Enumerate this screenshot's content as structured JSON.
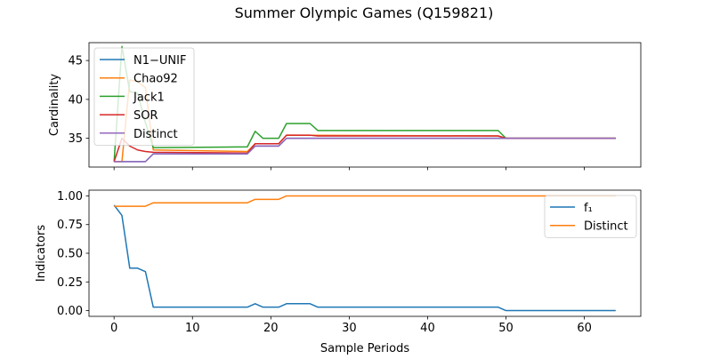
{
  "title": "Summer Olympic Games (Q159821)",
  "chart_data": [
    {
      "type": "line",
      "ylabel": "Cardinality",
      "xlabel": "",
      "xlim": [
        -3.2,
        67.2
      ],
      "ylim": [
        31.3,
        47.3
      ],
      "x_ticks": [
        0,
        10,
        20,
        30,
        40,
        50,
        60
      ],
      "y_ticks": [
        35,
        40,
        45
      ],
      "y_tick_labels": [
        "35",
        "40",
        "45"
      ],
      "show_x_tick_labels": false,
      "legend_position": "top-left",
      "series": [
        {
          "name": "N1−UNIF",
          "color": "#1f77b4",
          "points": [
            [
              0,
              32
            ],
            [
              1,
              32
            ],
            [
              2,
              32
            ],
            [
              3,
              32
            ],
            [
              4,
              32
            ],
            [
              5,
              33
            ],
            [
              17,
              33
            ],
            [
              18,
              34
            ],
            [
              21,
              34
            ],
            [
              22,
              35
            ],
            [
              49,
              35
            ],
            [
              50,
              35
            ],
            [
              64,
              35
            ]
          ]
        },
        {
          "name": "Chao92",
          "color": "#ff7f0e",
          "points": [
            [
              0,
              32
            ],
            [
              1,
              32
            ],
            [
              2,
              42.5
            ],
            [
              3,
              42.3
            ],
            [
              4,
              41.5
            ],
            [
              5,
              33.5
            ],
            [
              17,
              33.3
            ],
            [
              18,
              34.3
            ],
            [
              21,
              34.3
            ],
            [
              22,
              35.4
            ],
            [
              49,
              35.3
            ],
            [
              50,
              35
            ],
            [
              64,
              35
            ]
          ]
        },
        {
          "name": "Jack1",
          "color": "#2ca02c",
          "points": [
            [
              0,
              32
            ],
            [
              1,
              46.8
            ],
            [
              2,
              41
            ],
            [
              3,
              40.8
            ],
            [
              4,
              37
            ],
            [
              5,
              33.8
            ],
            [
              17,
              33.9
            ],
            [
              18,
              35.9
            ],
            [
              19,
              35
            ],
            [
              21,
              35
            ],
            [
              22,
              36.9
            ],
            [
              25,
              36.9
            ],
            [
              26,
              36
            ],
            [
              49,
              36
            ],
            [
              50,
              35
            ],
            [
              64,
              35
            ]
          ]
        },
        {
          "name": "SOR",
          "color": "#d62728",
          "points": [
            [
              0,
              32
            ],
            [
              1,
              35
            ],
            [
              2,
              34
            ],
            [
              3,
              33.5
            ],
            [
              4,
              33.3
            ],
            [
              5,
              33.2
            ],
            [
              17,
              33.1
            ],
            [
              18,
              34.3
            ],
            [
              21,
              34.3
            ],
            [
              22,
              35.4
            ],
            [
              25,
              35.4
            ],
            [
              26,
              35.3
            ],
            [
              49,
              35.3
            ],
            [
              50,
              35
            ],
            [
              64,
              35
            ]
          ]
        },
        {
          "name": "Distinct",
          "color": "#9467bd",
          "points": [
            [
              0,
              32
            ],
            [
              4,
              32
            ],
            [
              5,
              33
            ],
            [
              17,
              33
            ],
            [
              18,
              34
            ],
            [
              21,
              34
            ],
            [
              22,
              35
            ],
            [
              49,
              35
            ],
            [
              50,
              35
            ],
            [
              64,
              35
            ]
          ]
        }
      ]
    },
    {
      "type": "line",
      "ylabel": "Indicators",
      "xlabel": "Sample Periods",
      "xlim": [
        -3.2,
        67.2
      ],
      "ylim": [
        -0.05,
        1.05
      ],
      "x_ticks": [
        0,
        10,
        20,
        30,
        40,
        50,
        60
      ],
      "y_ticks": [
        0,
        0.25,
        0.5,
        0.75,
        1.0
      ],
      "y_tick_labels": [
        "0.00",
        "0.25",
        "0.50",
        "0.75",
        "1.00"
      ],
      "show_x_tick_labels": true,
      "legend_position": "top-right",
      "series": [
        {
          "name": "f₁",
          "color": "#1f77b4",
          "points": [
            [
              0,
              0.92
            ],
            [
              1,
              0.83
            ],
            [
              2,
              0.37
            ],
            [
              3,
              0.37
            ],
            [
              4,
              0.34
            ],
            [
              5,
              0.03
            ],
            [
              17,
              0.03
            ],
            [
              18,
              0.06
            ],
            [
              19,
              0.03
            ],
            [
              21,
              0.03
            ],
            [
              22,
              0.06
            ],
            [
              25,
              0.06
            ],
            [
              26,
              0.03
            ],
            [
              49,
              0.03
            ],
            [
              50,
              0
            ],
            [
              64,
              0
            ]
          ]
        },
        {
          "name": "Distinct",
          "color": "#ff7f0e",
          "points": [
            [
              0,
              0.91
            ],
            [
              4,
              0.91
            ],
            [
              5,
              0.94
            ],
            [
              17,
              0.94
            ],
            [
              18,
              0.97
            ],
            [
              21,
              0.97
            ],
            [
              22,
              1.0
            ],
            [
              64,
              1.0
            ]
          ]
        }
      ]
    }
  ]
}
